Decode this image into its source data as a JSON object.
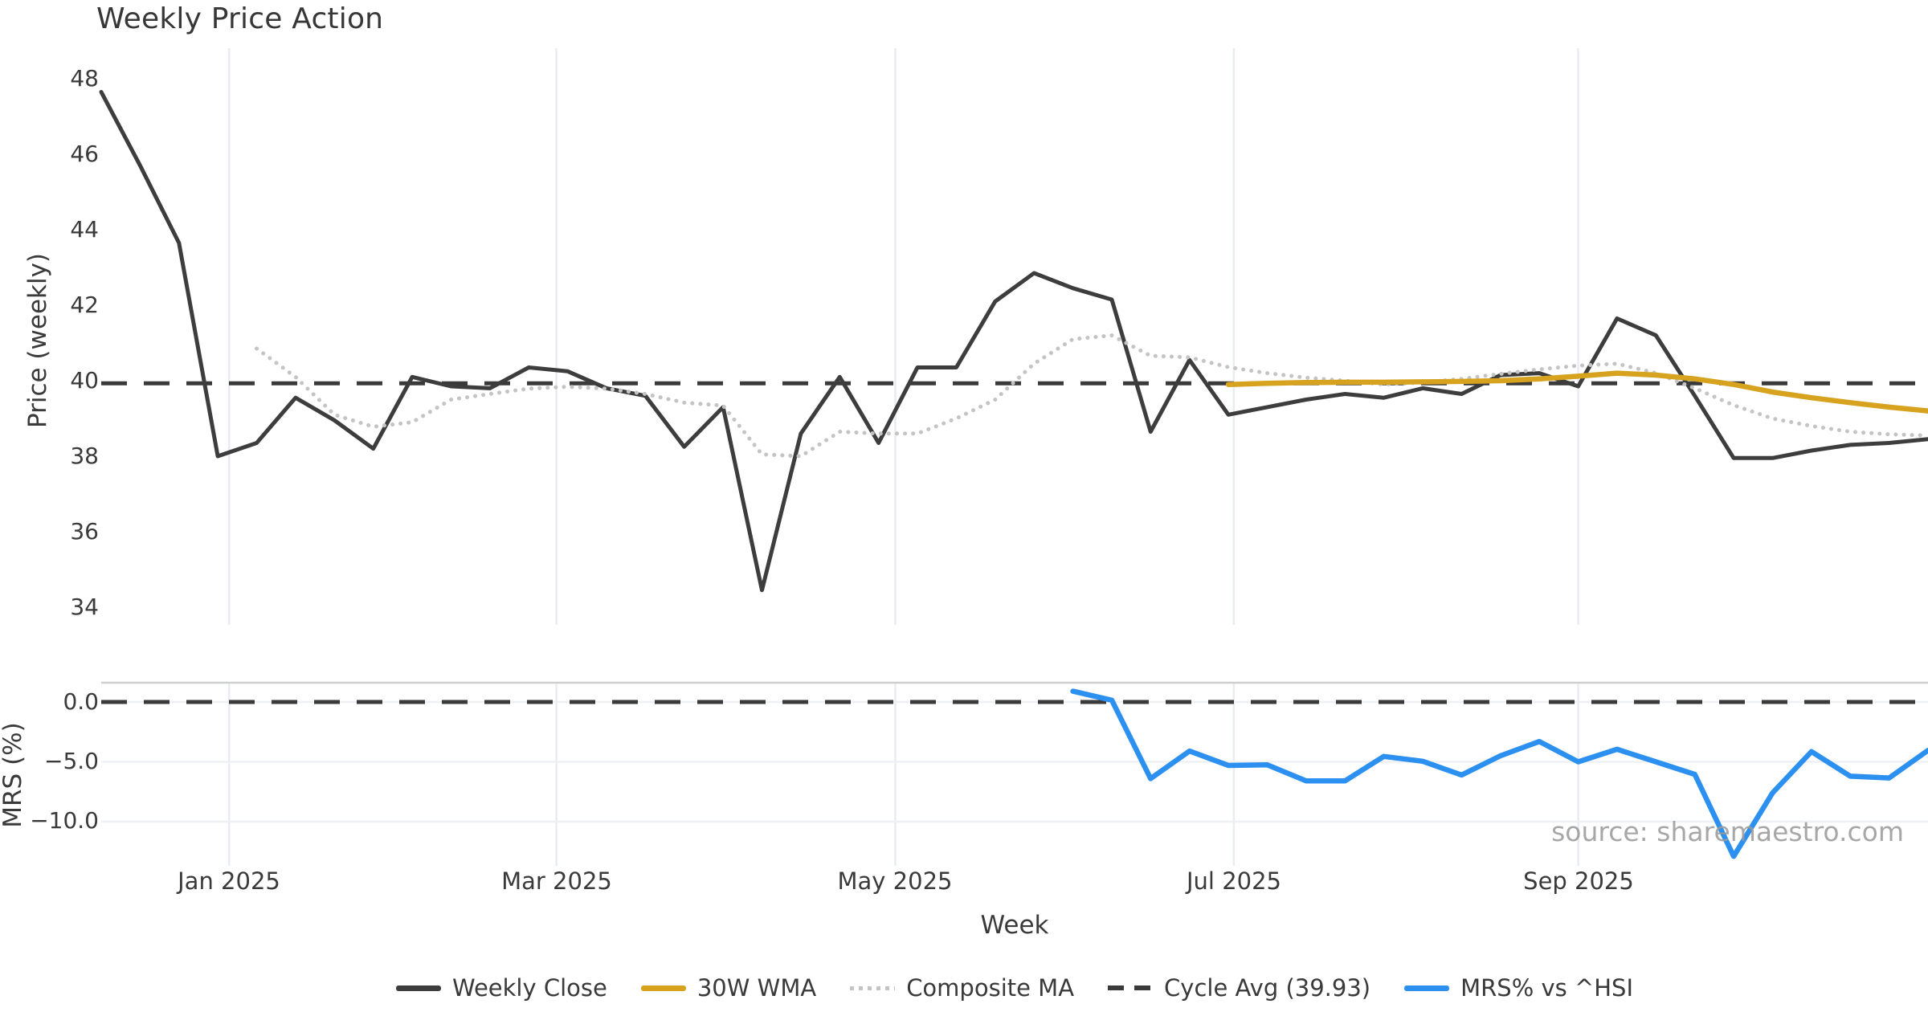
{
  "title": "Weekly Price Action",
  "watermark": "source: sharemaestro.com",
  "colors": {
    "weekly_close": "#3d3d3d",
    "wma_30w": "#d7a21e",
    "composite_ma": "#c4c4c4",
    "cycle_avg_dash": "#3a3a3a",
    "mrs_blue": "#2b90f0",
    "vertical_grid": "#e9ecf4",
    "horizontal_grid": "#eef0f4",
    "panel_spine": "#cfcfcf",
    "axis_text": "#3a3a3a",
    "watermark_text": "#9b9b9b",
    "background": "#ffffff"
  },
  "legend": [
    {
      "label": "Weekly Close",
      "color": "#3d3d3d",
      "pattern": "solid"
    },
    {
      "label": "30W WMA",
      "color": "#d7a21e",
      "pattern": "solid"
    },
    {
      "label": "Composite MA",
      "color": "#c4c4c4",
      "pattern": "dotted"
    },
    {
      "label": "Cycle Avg (39.93)",
      "color": "#3a3a3a",
      "pattern": "dashed"
    },
    {
      "label": "MRS% vs ^HSI",
      "color": "#2b90f0",
      "pattern": "solid"
    }
  ],
  "chart_data": [
    {
      "type": "line",
      "panel": "price",
      "title": "Weekly Price Action",
      "ylabel": "Price (weekly)",
      "ytick_labels": [
        "48",
        "46",
        "44",
        "42",
        "40",
        "38",
        "36",
        "34"
      ],
      "ytick_values": [
        48,
        46,
        44,
        42,
        40,
        38,
        36,
        34
      ],
      "ylim": [
        33.5,
        48.8
      ],
      "x_unit": "week_index",
      "n_points": 48,
      "grid": "vertical-months-only",
      "series": [
        {
          "name": "Weekly Close",
          "color": "#3d3d3d",
          "style": "solid",
          "width": 5,
          "values": [
            47.65,
            45.7,
            43.65,
            38.0,
            38.35,
            39.55,
            38.95,
            38.2,
            40.1,
            39.85,
            39.8,
            40.35,
            40.25,
            39.8,
            39.6,
            38.25,
            39.3,
            34.45,
            38.6,
            40.1,
            38.35,
            40.35,
            40.35,
            42.1,
            42.85,
            42.45,
            42.15,
            38.65,
            40.55,
            39.1,
            39.3,
            39.5,
            39.65,
            39.55,
            39.8,
            39.65,
            40.15,
            40.2,
            39.85,
            41.65,
            41.2,
            39.6,
            37.95,
            37.95,
            38.15,
            38.3,
            38.35,
            38.45
          ]
        },
        {
          "name": "30W WMA",
          "color": "#d7a21e",
          "style": "solid",
          "width": 6.5,
          "values": [
            null,
            null,
            null,
            null,
            null,
            null,
            null,
            null,
            null,
            null,
            null,
            null,
            null,
            null,
            null,
            null,
            null,
            null,
            null,
            null,
            null,
            null,
            null,
            null,
            null,
            null,
            null,
            null,
            null,
            39.9,
            39.93,
            39.95,
            39.96,
            39.96,
            39.97,
            39.98,
            40.0,
            40.05,
            40.12,
            40.2,
            40.15,
            40.05,
            39.9,
            39.7,
            39.55,
            39.42,
            39.3,
            39.2
          ]
        },
        {
          "name": "Composite MA",
          "color": "#c4c4c4",
          "style": "dotted",
          "width": 5,
          "values": [
            null,
            null,
            null,
            null,
            40.85,
            40.1,
            39.1,
            38.78,
            38.9,
            39.5,
            39.65,
            39.79,
            39.84,
            39.79,
            39.65,
            39.42,
            39.34,
            38.05,
            38.0,
            38.65,
            38.6,
            38.6,
            39.0,
            39.5,
            40.45,
            41.1,
            41.2,
            40.66,
            40.62,
            40.36,
            40.2,
            40.08,
            40.0,
            39.9,
            39.95,
            40.05,
            40.18,
            40.3,
            40.4,
            40.45,
            40.2,
            39.8,
            39.35,
            39.0,
            38.8,
            38.65,
            38.58,
            38.55
          ]
        },
        {
          "name": "Cycle Avg (39.93)",
          "color": "#3a3a3a",
          "style": "dashed",
          "width": 5,
          "hline": 39.93
        }
      ]
    },
    {
      "type": "line",
      "panel": "mrs",
      "ylabel": "MRS (%)",
      "xlabel": "Week",
      "ytick_labels": [
        "0.0",
        "−5.0",
        "−10.0"
      ],
      "ytick_values": [
        0,
        -5,
        -10
      ],
      "ylim": [
        -13.7,
        1.6
      ],
      "x_unit": "week_index",
      "n_points": 48,
      "grid": "horizontal-and-vertical",
      "xticks": [
        {
          "label": "Jan 2025",
          "week": 4.29
        },
        {
          "label": "Mar 2025",
          "week": 12.71
        },
        {
          "label": "May 2025",
          "week": 21.43
        },
        {
          "label": "Jul 2025",
          "week": 30.14
        },
        {
          "label": "Sep 2025",
          "week": 39.0
        }
      ],
      "series": [
        {
          "name": "MRS% vs ^HSI",
          "color": "#2b90f0",
          "style": "solid",
          "width": 6.5,
          "values": [
            null,
            null,
            null,
            null,
            null,
            null,
            null,
            null,
            null,
            null,
            null,
            null,
            null,
            null,
            null,
            null,
            null,
            null,
            null,
            null,
            null,
            null,
            null,
            null,
            null,
            0.9,
            0.15,
            -6.4,
            -4.1,
            -5.3,
            -5.25,
            -6.6,
            -6.6,
            -4.55,
            -4.95,
            -6.1,
            -4.5,
            -3.3,
            -5.0,
            -3.95,
            -5.0,
            -6.05,
            -12.9,
            -7.6,
            -4.15,
            -6.2,
            -6.35,
            -4.05
          ]
        },
        {
          "name": "Zero line",
          "color": "#3a3a3a",
          "style": "dashed",
          "width": 5,
          "hline": 0.0
        }
      ]
    }
  ]
}
